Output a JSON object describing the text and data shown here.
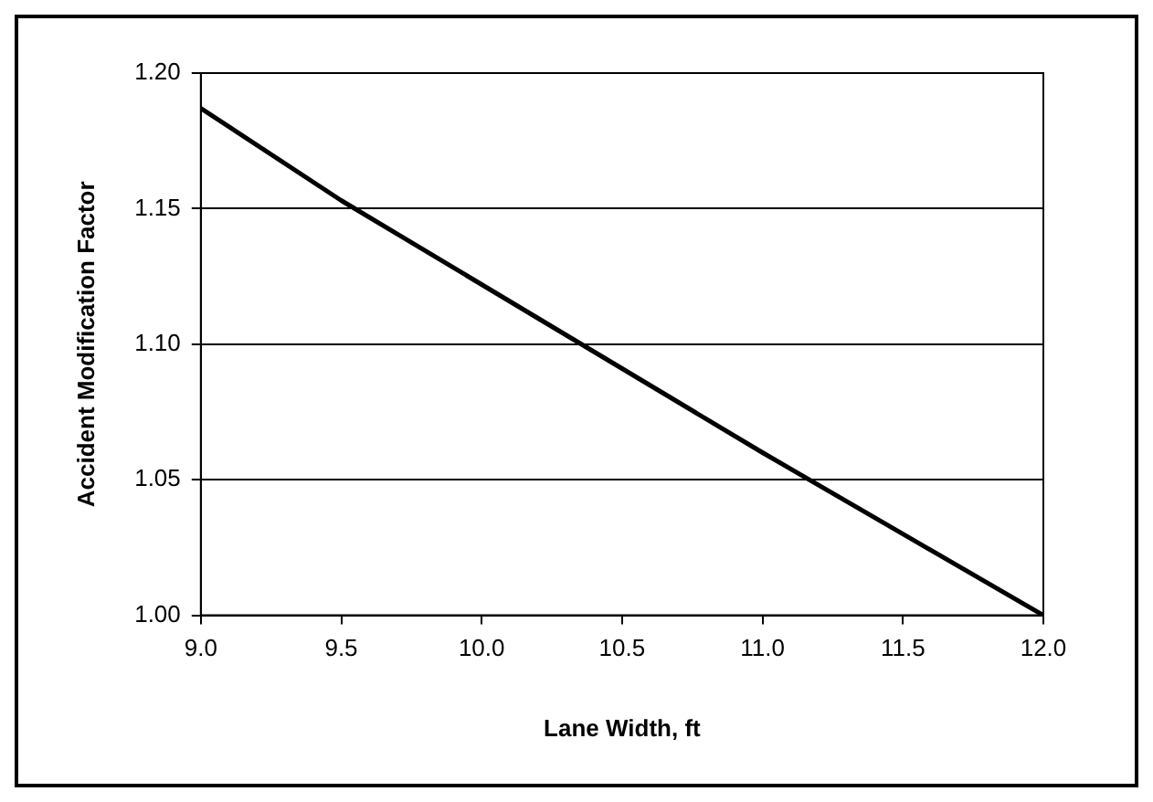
{
  "chart_data": {
    "type": "line",
    "xlabel": "Lane Width, ft",
    "ylabel": "Accident Modification Factor",
    "x": [
      9.0,
      9.5,
      10.0,
      10.5,
      11.0,
      11.5,
      12.0
    ],
    "series": [
      {
        "color": "#000000",
        "values": [
          1.187,
          1.153,
          1.122,
          1.091,
          1.06,
          1.03,
          1.0
        ]
      }
    ],
    "xlim": [
      9.0,
      12.0
    ],
    "xticks": [
      {
        "value": 9,
        "label": "9.0"
      },
      {
        "value": 9.5,
        "label": "9.5"
      },
      {
        "value": 10,
        "label": "10.0"
      },
      {
        "value": 10.5,
        "label": "10.5"
      },
      {
        "value": 11,
        "label": "11.0"
      },
      {
        "value": 11.5,
        "label": "11.5"
      },
      {
        "value": 12,
        "label": "12.0"
      }
    ],
    "ylim": [
      1.0,
      1.2
    ],
    "yticks": [
      {
        "value": 1,
        "label": "1.00"
      },
      {
        "value": 1.05,
        "label": "1.05"
      },
      {
        "value": 1.1,
        "label": "1.10"
      },
      {
        "value": 1.15,
        "label": "1.15"
      },
      {
        "value": 1.2,
        "label": "1.20"
      }
    ],
    "grid": "y",
    "legend": false,
    "marker": "none",
    "line_style": "solid"
  }
}
